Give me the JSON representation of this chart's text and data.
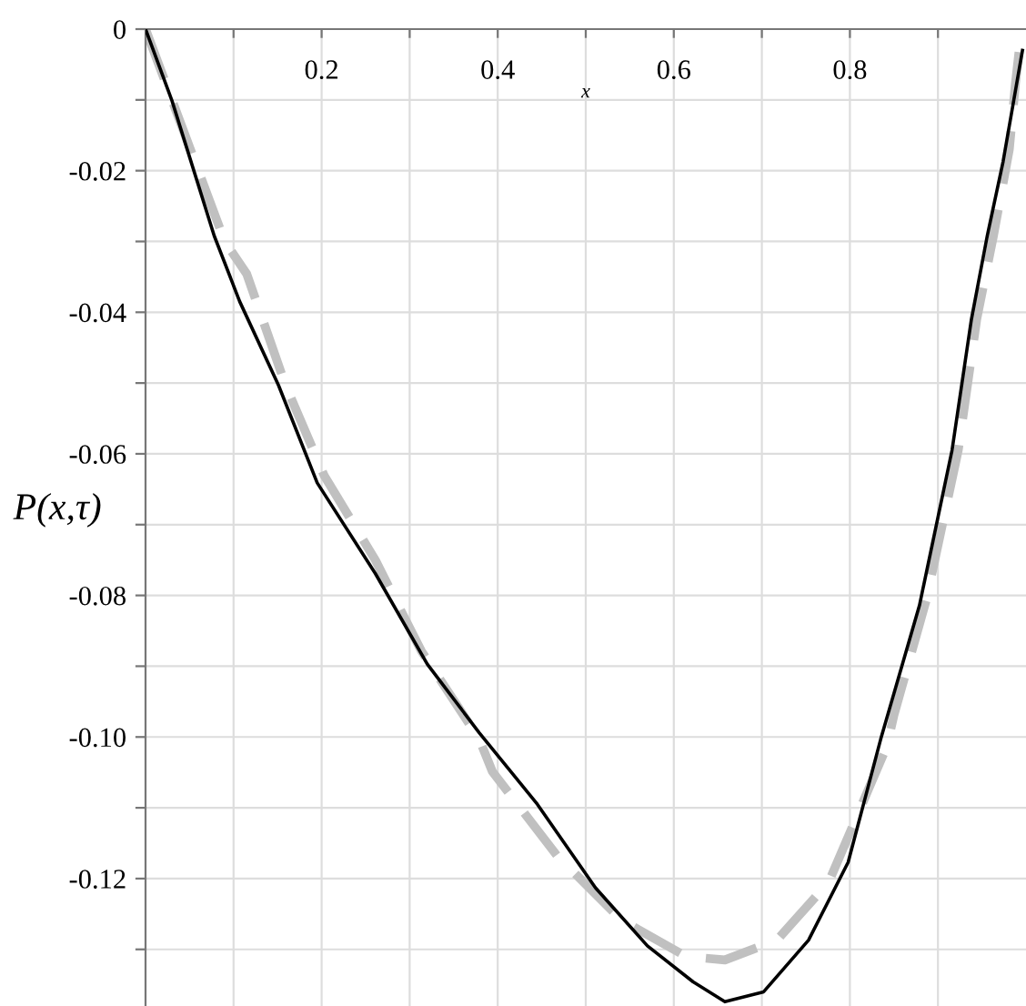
{
  "chart_data": {
    "type": "line",
    "xlabel": "x",
    "ylabel": "P(x,τ)",
    "xlim": [
      0,
      1
    ],
    "ylim": [
      -0.138,
      0
    ],
    "xticks": [
      {
        "value": 0.1,
        "label": null
      },
      0.2,
      {
        "value": 0.3,
        "label": null
      },
      0.4,
      {
        "value": 0.5,
        "label": null
      },
      0.6,
      {
        "value": 0.7,
        "label": null
      },
      0.8,
      {
        "value": 0.9,
        "label": null
      }
    ],
    "yticks": [
      0,
      {
        "value": -0.01,
        "label": null
      },
      -0.02,
      {
        "value": -0.03,
        "label": null
      },
      -0.04,
      {
        "value": -0.05,
        "label": null
      },
      -0.06,
      {
        "value": -0.07,
        "label": null
      },
      -0.08,
      {
        "value": -0.09,
        "label": null
      },
      {
        "value": -0.1,
        "label": "-0.10"
      },
      {
        "value": -0.11,
        "label": null
      },
      {
        "value": -0.12,
        "label": "-0.12"
      },
      {
        "value": -0.13,
        "label": null
      }
    ],
    "grid": true,
    "series": [
      {
        "color": "#000000",
        "line_style": "solid",
        "x": [
          0,
          0.03,
          0.078,
          0.107,
          0.151,
          0.195,
          0.261,
          0.32,
          0.379,
          0.445,
          0.511,
          0.57,
          0.622,
          0.658,
          0.702,
          0.753,
          0.798,
          0.835,
          0.879,
          0.916,
          0.938,
          0.956,
          0.974,
          0.988,
          0.996
        ],
        "values": [
          0,
          -0.0101,
          -0.0292,
          -0.0385,
          -0.0503,
          -0.0641,
          -0.0769,
          -0.0897,
          -0.0994,
          -0.1095,
          -0.1213,
          -0.1295,
          -0.1346,
          -0.1374,
          -0.136,
          -0.1287,
          -0.1177,
          -0.1003,
          -0.0814,
          -0.0595,
          -0.041,
          -0.0292,
          -0.0187,
          -0.0087,
          -0.003
        ]
      },
      {
        "color": "#c0c0c0",
        "line_style": "dashed",
        "x": [
          0,
          0.03,
          0.09,
          0.115,
          0.159,
          0.203,
          0.261,
          0.313,
          0.379,
          0.394,
          0.467,
          0.541,
          0.614,
          0.658,
          0.717,
          0.776,
          0.82,
          0.842,
          0.85,
          0.887,
          0.923,
          0.944,
          0.963,
          0.981,
          0.988,
          0.995
        ],
        "values": [
          0,
          -0.01,
          -0.03,
          -0.0346,
          -0.0503,
          -0.0631,
          -0.075,
          -0.0878,
          -0.1003,
          -0.1049,
          -0.1167,
          -0.1259,
          -0.131,
          -0.1315,
          -0.1287,
          -0.1205,
          -0.1077,
          -0.1013,
          -0.0969,
          -0.0805,
          -0.0595,
          -0.041,
          -0.0292,
          -0.017,
          -0.0077,
          0
        ]
      }
    ]
  }
}
